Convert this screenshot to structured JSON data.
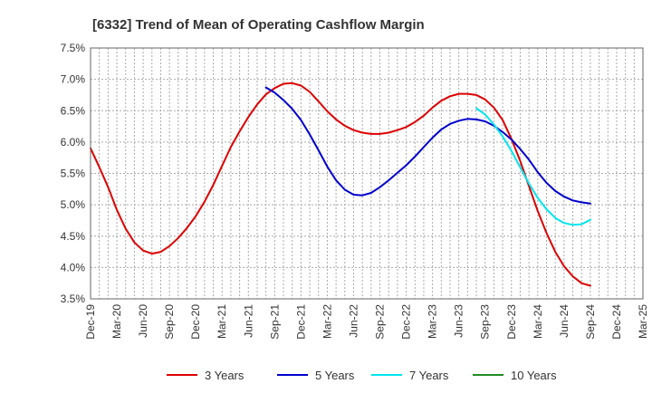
{
  "chart_data": {
    "type": "line",
    "title": "[6332]  Trend of Mean of Operating Cashflow Margin",
    "xlabel": "",
    "ylabel": "",
    "ylim": [
      3.5,
      7.5
    ],
    "y_ticks": [
      "3.5%",
      "4.0%",
      "4.5%",
      "5.0%",
      "5.5%",
      "6.0%",
      "6.5%",
      "7.0%",
      "7.5%"
    ],
    "x_ticks": [
      "Dec-19",
      "Mar-20",
      "Jun-20",
      "Sep-20",
      "Dec-20",
      "Mar-21",
      "Jun-21",
      "Sep-21",
      "Dec-21",
      "Mar-22",
      "Jun-22",
      "Sep-22",
      "Dec-22",
      "Mar-23",
      "Jun-23",
      "Sep-23",
      "Dec-23",
      "Mar-24",
      "Jun-24",
      "Sep-24",
      "Dec-24",
      "Mar-25"
    ],
    "grid": true,
    "legend_position": "bottom",
    "series": [
      {
        "name": "3 Years",
        "color": "#dd0000",
        "points": [
          [
            "Dec-19",
            5.9
          ],
          [
            "Jan-20",
            5.6
          ],
          [
            "Feb-20",
            5.28
          ],
          [
            "Mar-20",
            4.92
          ],
          [
            "Apr-20",
            4.62
          ],
          [
            "May-20",
            4.4
          ],
          [
            "Jun-20",
            4.27
          ],
          [
            "Jul-20",
            4.22
          ],
          [
            "Aug-20",
            4.25
          ],
          [
            "Sep-20",
            4.34
          ],
          [
            "Oct-20",
            4.47
          ],
          [
            "Nov-20",
            4.63
          ],
          [
            "Dec-20",
            4.82
          ],
          [
            "Jan-21",
            5.05
          ],
          [
            "Feb-21",
            5.32
          ],
          [
            "Mar-21",
            5.62
          ],
          [
            "Apr-21",
            5.92
          ],
          [
            "May-21",
            6.17
          ],
          [
            "Jun-21",
            6.4
          ],
          [
            "Jul-21",
            6.6
          ],
          [
            "Aug-21",
            6.76
          ],
          [
            "Sep-21",
            6.86
          ],
          [
            "Oct-21",
            6.93
          ],
          [
            "Nov-21",
            6.94
          ],
          [
            "Dec-21",
            6.9
          ],
          [
            "Jan-22",
            6.8
          ],
          [
            "Feb-22",
            6.65
          ],
          [
            "Mar-22",
            6.49
          ],
          [
            "Apr-22",
            6.36
          ],
          [
            "May-22",
            6.26
          ],
          [
            "Jun-22",
            6.19
          ],
          [
            "Jul-22",
            6.15
          ],
          [
            "Aug-22",
            6.13
          ],
          [
            "Sep-22",
            6.13
          ],
          [
            "Oct-22",
            6.15
          ],
          [
            "Nov-22",
            6.19
          ],
          [
            "Dec-22",
            6.24
          ],
          [
            "Jan-23",
            6.32
          ],
          [
            "Feb-23",
            6.42
          ],
          [
            "Mar-23",
            6.55
          ],
          [
            "Apr-23",
            6.66
          ],
          [
            "May-23",
            6.73
          ],
          [
            "Jun-23",
            6.77
          ],
          [
            "Jul-23",
            6.77
          ],
          [
            "Aug-23",
            6.75
          ],
          [
            "Sep-23",
            6.68
          ],
          [
            "Oct-23",
            6.55
          ],
          [
            "Nov-23",
            6.35
          ],
          [
            "Dec-23",
            6.05
          ],
          [
            "Jan-24",
            5.7
          ],
          [
            "Feb-24",
            5.3
          ],
          [
            "Mar-24",
            4.9
          ],
          [
            "Apr-24",
            4.55
          ],
          [
            "May-24",
            4.25
          ],
          [
            "Jun-24",
            4.02
          ],
          [
            "Jul-24",
            3.86
          ],
          [
            "Aug-24",
            3.75
          ],
          [
            "Sep-24",
            3.71
          ]
        ]
      },
      {
        "name": "5 Years",
        "color": "#0000cc",
        "points": [
          [
            "Aug-21",
            6.87
          ],
          [
            "Sep-21",
            6.79
          ],
          [
            "Oct-21",
            6.67
          ],
          [
            "Nov-21",
            6.53
          ],
          [
            "Dec-21",
            6.35
          ],
          [
            "Jan-22",
            6.12
          ],
          [
            "Feb-22",
            5.87
          ],
          [
            "Mar-22",
            5.61
          ],
          [
            "Apr-22",
            5.39
          ],
          [
            "May-22",
            5.24
          ],
          [
            "Jun-22",
            5.16
          ],
          [
            "Jul-22",
            5.15
          ],
          [
            "Aug-22",
            5.19
          ],
          [
            "Sep-22",
            5.28
          ],
          [
            "Oct-22",
            5.39
          ],
          [
            "Nov-22",
            5.51
          ],
          [
            "Dec-22",
            5.63
          ],
          [
            "Jan-23",
            5.77
          ],
          [
            "Feb-23",
            5.92
          ],
          [
            "Mar-23",
            6.07
          ],
          [
            "Apr-23",
            6.2
          ],
          [
            "May-23",
            6.29
          ],
          [
            "Jun-23",
            6.34
          ],
          [
            "Jul-23",
            6.37
          ],
          [
            "Aug-23",
            6.36
          ],
          [
            "Sep-23",
            6.33
          ],
          [
            "Oct-23",
            6.26
          ],
          [
            "Nov-23",
            6.16
          ],
          [
            "Dec-23",
            6.04
          ],
          [
            "Jan-24",
            5.89
          ],
          [
            "Feb-24",
            5.72
          ],
          [
            "Mar-24",
            5.52
          ],
          [
            "Apr-24",
            5.35
          ],
          [
            "May-24",
            5.22
          ],
          [
            "Jun-24",
            5.13
          ],
          [
            "Jul-24",
            5.07
          ],
          [
            "Aug-24",
            5.04
          ],
          [
            "Sep-24",
            5.02
          ]
        ]
      },
      {
        "name": "7 Years",
        "color": "#00e5ee",
        "points": [
          [
            "Aug-23",
            6.54
          ],
          [
            "Sep-23",
            6.44
          ],
          [
            "Oct-23",
            6.28
          ],
          [
            "Nov-23",
            6.09
          ],
          [
            "Dec-23",
            5.86
          ],
          [
            "Jan-24",
            5.6
          ],
          [
            "Feb-24",
            5.34
          ],
          [
            "Mar-24",
            5.11
          ],
          [
            "Apr-24",
            4.93
          ],
          [
            "May-24",
            4.79
          ],
          [
            "Jun-24",
            4.71
          ],
          [
            "Jul-24",
            4.68
          ],
          [
            "Aug-24",
            4.69
          ],
          [
            "Sep-24",
            4.76
          ]
        ]
      },
      {
        "name": "10 Years",
        "color": "#228b22",
        "points": []
      }
    ]
  }
}
